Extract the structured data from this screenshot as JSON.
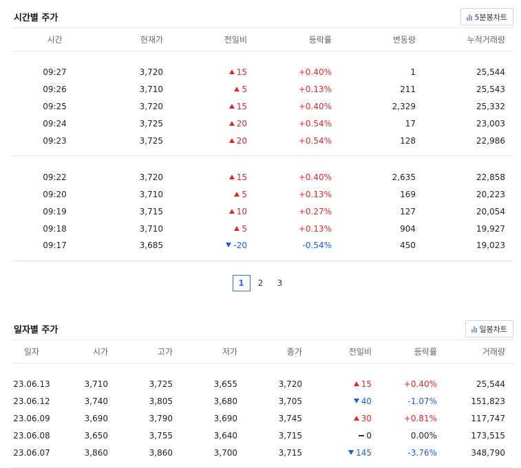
{
  "intraday": {
    "title": "시간별 주가",
    "chart_button": "5분봉차트",
    "headers": [
      "시간",
      "현재가",
      "전일비",
      "등락률",
      "변동량",
      "누적거래량"
    ],
    "groups": [
      [
        {
          "time": "09:27",
          "price": "3,720",
          "dir": "up",
          "change": "15",
          "rate": "+0.40%",
          "vol": "1",
          "cum": "25,544"
        },
        {
          "time": "09:26",
          "price": "3,710",
          "dir": "up",
          "change": "5",
          "rate": "+0.13%",
          "vol": "211",
          "cum": "25,543"
        },
        {
          "time": "09:25",
          "price": "3,720",
          "dir": "up",
          "change": "15",
          "rate": "+0.40%",
          "vol": "2,329",
          "cum": "25,332"
        },
        {
          "time": "09:24",
          "price": "3,725",
          "dir": "up",
          "change": "20",
          "rate": "+0.54%",
          "vol": "17",
          "cum": "23,003"
        },
        {
          "time": "09:23",
          "price": "3,725",
          "dir": "up",
          "change": "20",
          "rate": "+0.54%",
          "vol": "128",
          "cum": "22,986"
        }
      ],
      [
        {
          "time": "09:22",
          "price": "3,720",
          "dir": "up",
          "change": "15",
          "rate": "+0.40%",
          "vol": "2,635",
          "cum": "22,858"
        },
        {
          "time": "09:20",
          "price": "3,710",
          "dir": "up",
          "change": "5",
          "rate": "+0.13%",
          "vol": "169",
          "cum": "20,223"
        },
        {
          "time": "09:19",
          "price": "3,715",
          "dir": "up",
          "change": "10",
          "rate": "+0.27%",
          "vol": "127",
          "cum": "20,054"
        },
        {
          "time": "09:18",
          "price": "3,710",
          "dir": "up",
          "change": "5",
          "rate": "+0.13%",
          "vol": "904",
          "cum": "19,927"
        },
        {
          "time": "09:17",
          "price": "3,685",
          "dir": "down",
          "change": "-20",
          "rate": "-0.54%",
          "vol": "450",
          "cum": "19,023"
        }
      ]
    ]
  },
  "pagination": {
    "pages": [
      "1",
      "2",
      "3"
    ],
    "active": "1"
  },
  "daily": {
    "title": "일자별 주가",
    "chart_button": "일봉차트",
    "headers": [
      "일자",
      "시가",
      "고가",
      "저가",
      "종가",
      "전일비",
      "등락률",
      "거래량"
    ],
    "rows": [
      {
        "date": "23.06.13",
        "open": "3,710",
        "high": "3,725",
        "low": "3,655",
        "close": "3,720",
        "dir": "up",
        "change": "15",
        "rate": "+0.40%",
        "vol": "25,544"
      },
      {
        "date": "23.06.12",
        "open": "3,740",
        "high": "3,805",
        "low": "3,680",
        "close": "3,705",
        "dir": "down",
        "change": "40",
        "rate": "-1.07%",
        "vol": "151,823"
      },
      {
        "date": "23.06.09",
        "open": "3,690",
        "high": "3,790",
        "low": "3,690",
        "close": "3,745",
        "dir": "up",
        "change": "30",
        "rate": "+0.81%",
        "vol": "117,747"
      },
      {
        "date": "23.06.08",
        "open": "3,650",
        "high": "3,755",
        "low": "3,640",
        "close": "3,715",
        "dir": "flat",
        "change": "0",
        "rate": "0.00%",
        "vol": "173,515"
      },
      {
        "date": "23.06.07",
        "open": "3,860",
        "high": "3,860",
        "low": "3,700",
        "close": "3,715",
        "dir": "down",
        "change": "145",
        "rate": "-3.76%",
        "vol": "348,790"
      }
    ]
  },
  "colors": {
    "up": "#e0262a",
    "down": "#1f5bd6",
    "accent": "#2f6fd8"
  },
  "icons": {
    "chart_button": "bar-chart-icon",
    "up": "triangle-up-icon",
    "down": "triangle-down-icon",
    "flat": "dash-icon"
  }
}
